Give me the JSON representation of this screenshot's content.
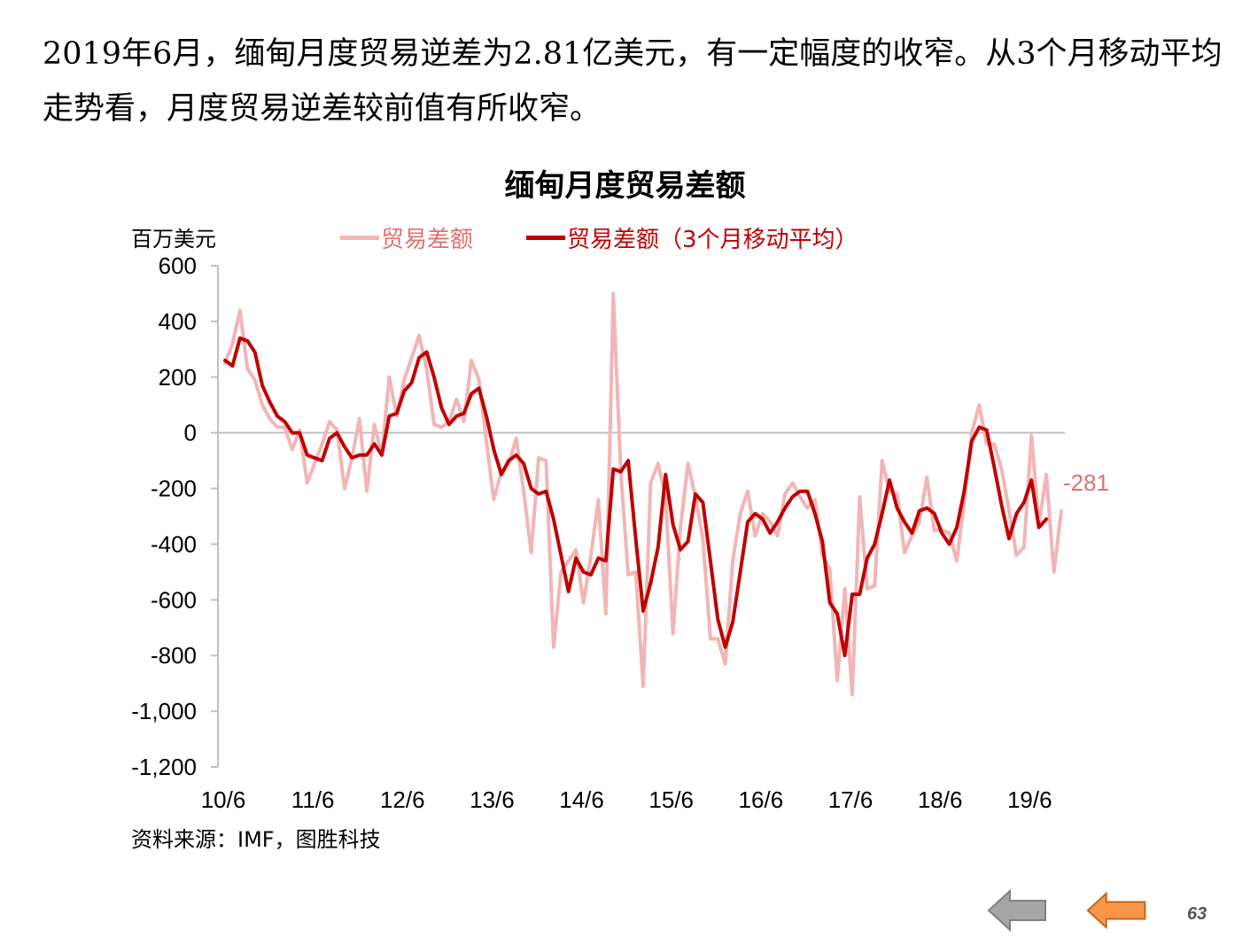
{
  "intro_text": "2019年6月，缅甸月度贸易逆差为2.81亿美元，有一定幅度的收窄。从3个月移动平均走势看，月度贸易逆差较前值有所收窄。",
  "source_text": "资料来源：IMF，图胜科技",
  "page_number": "63",
  "colors": {
    "monthly": "#f2b5b5",
    "moving_avg": "#c00000",
    "last_label": "#e07070",
    "axis": "#bfbfbf"
  },
  "chart_data": {
    "type": "line",
    "title": "缅甸月度贸易差额",
    "ylabel": "百万美元",
    "ylim": [
      -1200,
      600
    ],
    "yticks": [
      600,
      400,
      200,
      0,
      -200,
      -400,
      -600,
      -800,
      -1000,
      -1200
    ],
    "ytick_labels": [
      "600",
      "400",
      "200",
      "0",
      "-200",
      "-400",
      "-600",
      "-800",
      "-1,000",
      "-1,200"
    ],
    "xtick_labels": [
      "10/6",
      "11/6",
      "12/6",
      "13/6",
      "14/6",
      "15/6",
      "16/6",
      "17/6",
      "18/6",
      "19/6"
    ],
    "x_start": "2010-06",
    "x_end": "2019-06",
    "last_value_label": "-281",
    "legend_position": "top",
    "series": [
      {
        "name": "贸易差额",
        "values": [
          250,
          320,
          440,
          230,
          190,
          100,
          50,
          20,
          20,
          -60,
          10,
          -180,
          -110,
          -40,
          40,
          10,
          -200,
          -90,
          50,
          -210,
          30,
          -80,
          200,
          60,
          190,
          270,
          350,
          230,
          30,
          20,
          40,
          120,
          40,
          260,
          190,
          -30,
          -240,
          -140,
          -110,
          -20,
          -210,
          -430,
          -90,
          -100,
          -770,
          -500,
          -460,
          -420,
          -610,
          -440,
          -240,
          -650,
          500,
          -140,
          -510,
          -500,
          -910,
          -180,
          -110,
          -230,
          -720,
          -340,
          -110,
          -230,
          -380,
          -740,
          -740,
          -830,
          -460,
          -290,
          -210,
          -370,
          -290,
          -320,
          -370,
          -220,
          -180,
          -230,
          -270,
          -240,
          -440,
          -490,
          -890,
          -560,
          -940,
          -230,
          -560,
          -550,
          -100,
          -210,
          -220,
          -430,
          -370,
          -320,
          -160,
          -350,
          -350,
          -360,
          -460,
          -250,
          0,
          100,
          -40,
          -40,
          -130,
          -280,
          -440,
          -410,
          -10,
          -330,
          -150,
          -500,
          -281
        ]
      },
      {
        "name": "贸易差额（3个月移动平均）",
        "values": [
          260,
          240,
          340,
          330,
          290,
          170,
          110,
          60,
          40,
          0,
          0,
          -80,
          -90,
          -100,
          -20,
          0,
          -50,
          -90,
          -80,
          -80,
          -40,
          -80,
          60,
          70,
          150,
          180,
          270,
          290,
          200,
          90,
          30,
          60,
          70,
          140,
          160,
          60,
          -60,
          -150,
          -100,
          -80,
          -110,
          -200,
          -220,
          -210,
          -310,
          -440,
          -570,
          -450,
          -500,
          -510,
          -450,
          -460,
          -130,
          -140,
          -100,
          -380,
          -640,
          -540,
          -410,
          -150,
          -330,
          -420,
          -390,
          -220,
          -250,
          -460,
          -670,
          -770,
          -680,
          -500,
          -320,
          -290,
          -310,
          -360,
          -320,
          -270,
          -230,
          -210,
          -210,
          -290,
          -390,
          -610,
          -650,
          -800,
          -580,
          -580,
          -450,
          -400,
          -290,
          -170,
          -270,
          -320,
          -360,
          -280,
          -270,
          -290,
          -360,
          -400,
          -340,
          -210,
          -30,
          20,
          10,
          -120,
          -260,
          -380,
          -290,
          -250,
          -170,
          -340,
          -310
        ]
      }
    ]
  }
}
